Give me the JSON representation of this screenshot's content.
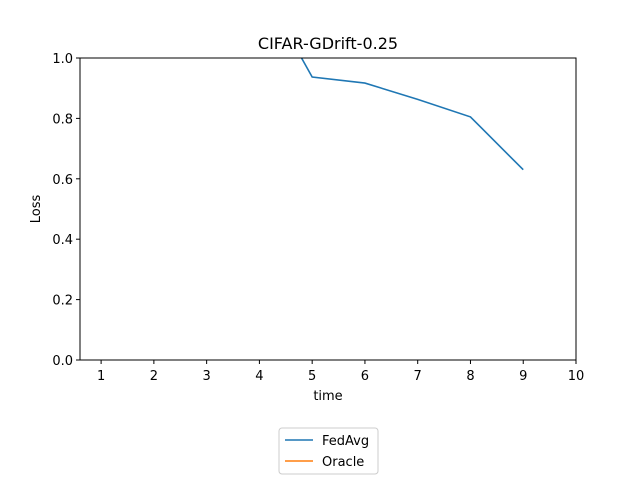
{
  "chart_data": {
    "type": "line",
    "title": "CIFAR-GDrift-0.25",
    "xlabel": "time",
    "ylabel": "Loss",
    "xlim": [
      0.6,
      10
    ],
    "ylim": [
      0.0,
      1.0
    ],
    "xticks": [
      "1",
      "2",
      "3",
      "4",
      "5",
      "6",
      "7",
      "8",
      "9",
      "10"
    ],
    "yticks": [
      "0.0",
      "0.2",
      "0.4",
      "0.6",
      "0.8",
      "1.0"
    ],
    "grid": false,
    "legend_position": "bottom-center",
    "series": [
      {
        "name": "FedAvg",
        "color": "#1f77b4",
        "x": [
          4,
          5,
          6,
          7,
          8,
          9
        ],
        "y": [
          1.25,
          0.937,
          0.917,
          0.863,
          0.805,
          0.63
        ]
      },
      {
        "name": "Oracle",
        "color": "#ff7f0e",
        "x": [],
        "y": []
      }
    ]
  }
}
